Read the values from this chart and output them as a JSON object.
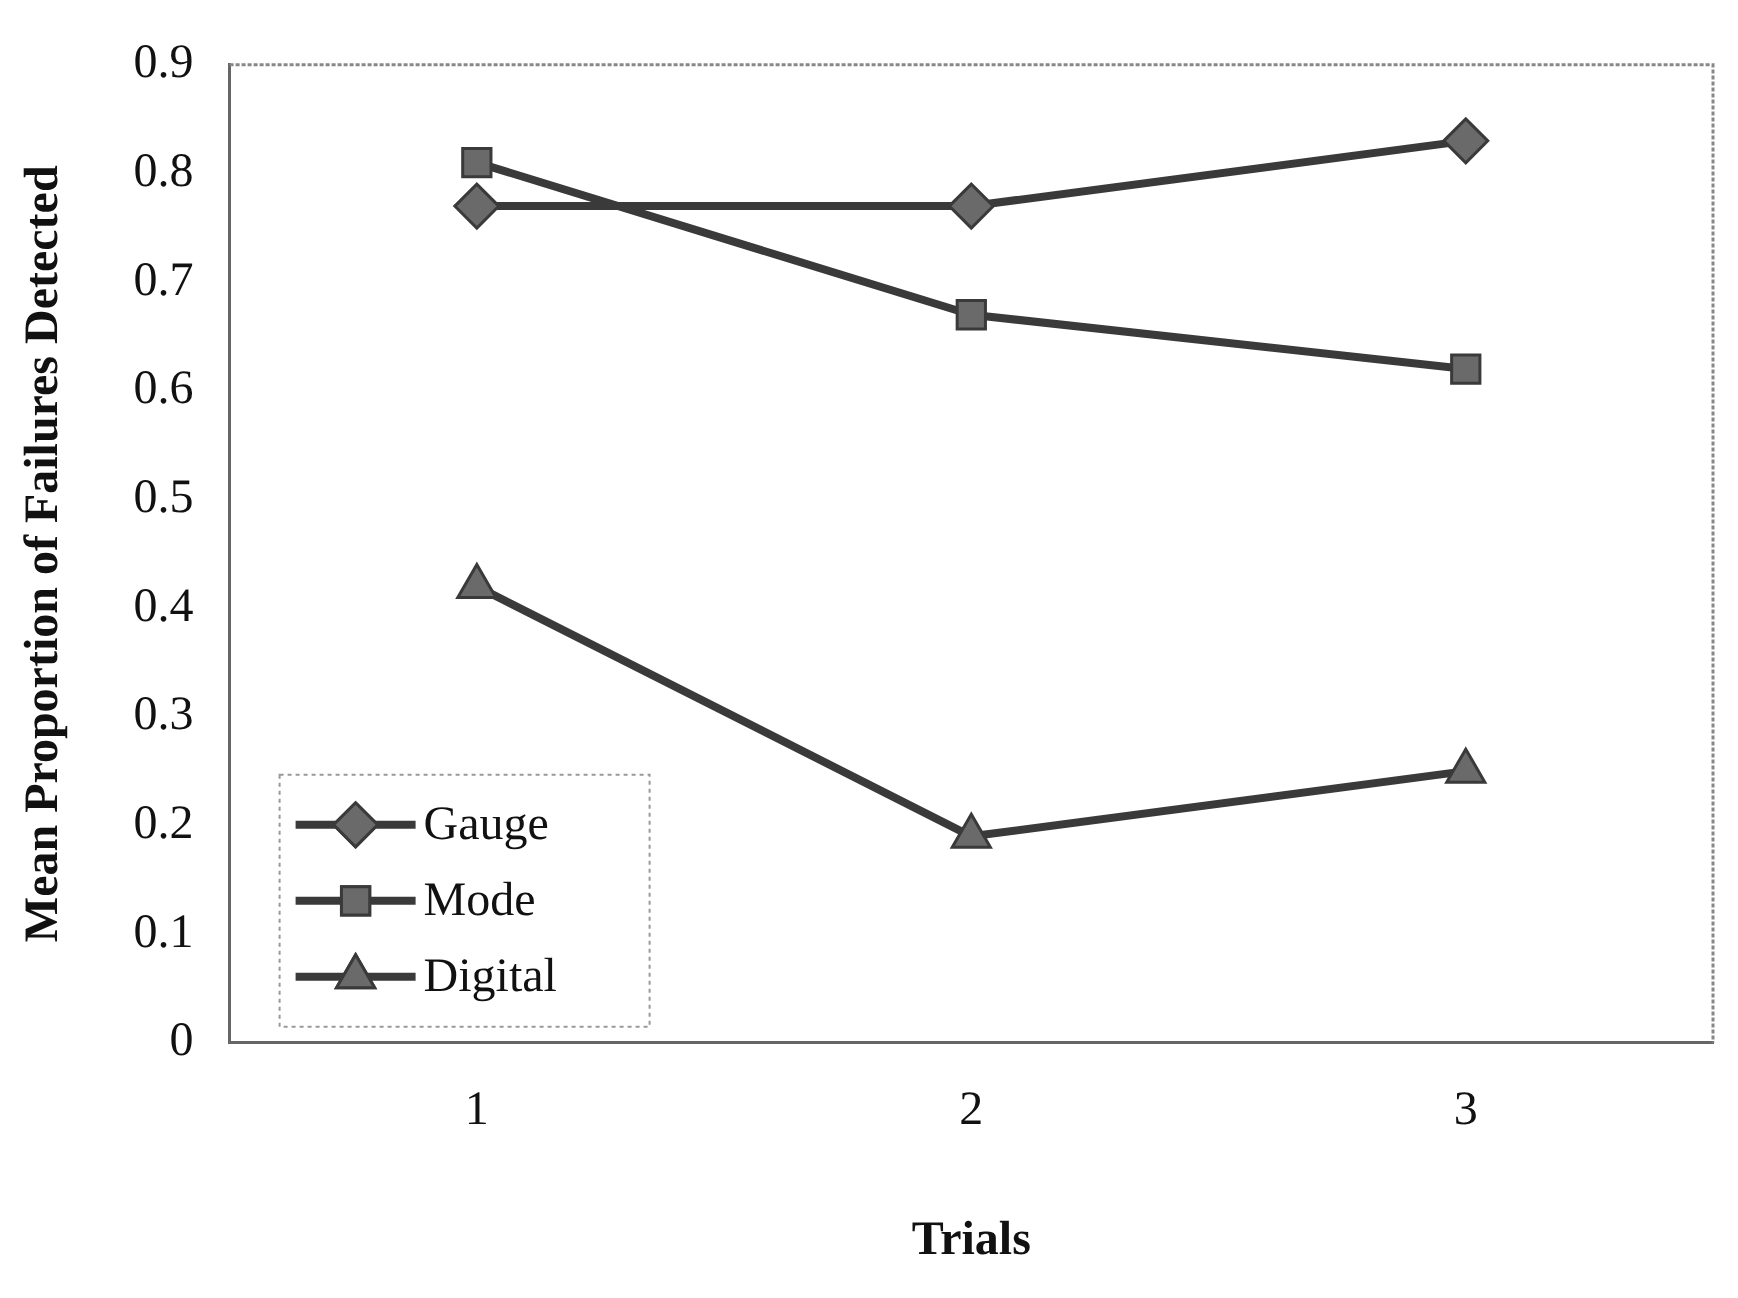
{
  "chart_data": {
    "type": "line",
    "xlabel": "Trials",
    "ylabel": "Mean Proportion of Failures Detected",
    "categories": [
      "1",
      "2",
      "3"
    ],
    "series": [
      {
        "name": "Gauge",
        "color": "#3a3a3a",
        "marker": "diamond",
        "values": [
          0.77,
          0.77,
          0.83
        ]
      },
      {
        "name": "Mode",
        "color": "#3a3a3a",
        "marker": "square",
        "values": [
          0.81,
          0.67,
          0.62
        ]
      },
      {
        "name": "Digital",
        "color": "#3a3a3a",
        "marker": "triangle",
        "values": [
          0.42,
          0.19,
          0.25
        ]
      }
    ],
    "ylim": [
      0,
      0.9
    ],
    "yticks": [
      0,
      0.1,
      0.2,
      0.3,
      0.4,
      0.5,
      0.6,
      0.7,
      0.8,
      0.9
    ],
    "grid": false,
    "legend": "bottom left"
  }
}
